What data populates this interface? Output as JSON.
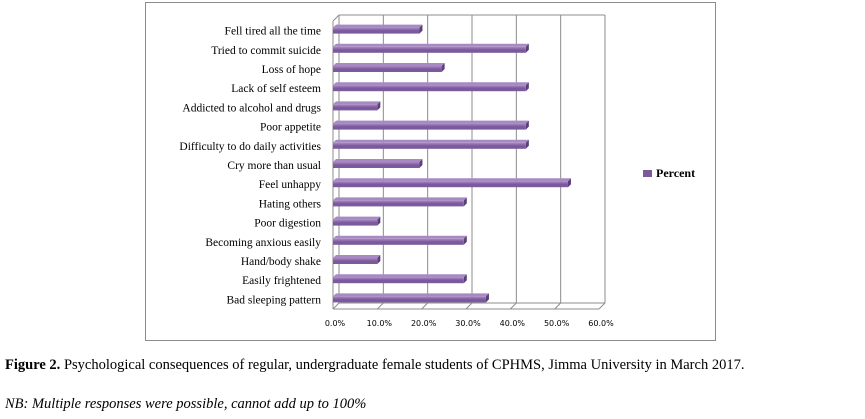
{
  "chart_data": {
    "type": "bar",
    "orientation": "horizontal",
    "categories": [
      "Fell tired all the time",
      "Tried to commit suicide",
      "Loss of hope",
      "Lack of self esteem",
      "Addicted to alcohol and drugs",
      "Poor appetite",
      "Difficulty to do daily activities",
      "Cry more than usual",
      "Feel unhappy",
      "Hating others",
      "Poor digestion",
      "Becoming anxious easily",
      "Hand/body shake",
      "Easily frightened",
      "Bad sleeping pattern"
    ],
    "series": [
      {
        "name": "Percent",
        "values": [
          19.5,
          43.5,
          24.5,
          43.5,
          10.0,
          43.5,
          43.5,
          19.5,
          53.0,
          29.5,
          10.0,
          29.5,
          10.0,
          29.5,
          34.5
        ]
      }
    ],
    "xlim": [
      0,
      60
    ],
    "ticks": [
      "0.0%",
      "10.0%",
      "20.0%",
      "30.0%",
      "40.0%",
      "50.0%",
      "60.0%"
    ],
    "grid": "vertical",
    "legend_position": "right",
    "colors": {
      "bar": "#7b5a9c",
      "bar_light": "#a889c4",
      "grid": "#8c8c8c",
      "frame": "#8c8c8c"
    }
  },
  "caption": {
    "label": "Figure 2.",
    "text": " Psychological consequences of regular, undergraduate female students of CPHMS, Jimma University in March 2017."
  },
  "note": "NB: Multiple responses were possible, cannot add up to 100%"
}
